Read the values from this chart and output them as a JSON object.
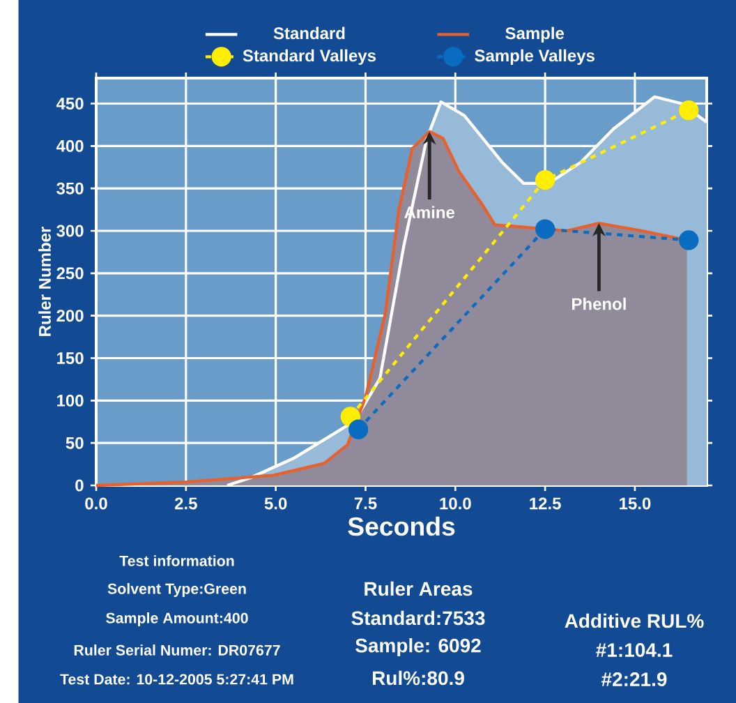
{
  "chart_data": {
    "type": "line",
    "xlabel": "Seconds",
    "ylabel": "Ruler Number",
    "xlim": [
      0,
      17
    ],
    "ylim": [
      0,
      480
    ],
    "xticks": [
      {
        "value": 0,
        "label": "0.0"
      },
      2.5,
      {
        "value": 5,
        "label": "5.0"
      },
      7.5,
      {
        "value": 10,
        "label": "10.0"
      },
      12.5,
      {
        "value": 15,
        "label": "15.0"
      }
    ],
    "yticks": [
      0,
      50,
      100,
      150,
      200,
      250,
      300,
      350,
      400,
      450
    ],
    "grid": true,
    "legend": "top",
    "series": [
      {
        "name": "Standard",
        "type": "area",
        "color": "#ffffff",
        "x": [
          3.65,
          4.3,
          5.5,
          7.2,
          7.9,
          8.56,
          9.2,
          9.6,
          10.25,
          11.3,
          11.9,
          12.6,
          13.5,
          14.4,
          15.55,
          16.3,
          17.0
        ],
        "values": [
          0,
          9,
          32,
          76,
          126,
          281,
          408,
          452,
          436,
          381,
          356,
          356,
          381,
          420,
          458,
          450,
          428
        ]
      },
      {
        "name": "Sample",
        "type": "area",
        "color": "#e8602c",
        "x": [
          0,
          2.5,
          4.95,
          6.35,
          7.0,
          7.5,
          8.05,
          8.43,
          8.8,
          9.28,
          9.66,
          10.1,
          10.75,
          11.1,
          12.6,
          13.1,
          14.0,
          15.2,
          16.45
        ],
        "values": [
          0,
          4,
          12,
          26,
          48,
          104,
          203,
          325,
          397,
          417,
          409,
          370,
          331,
          307,
          302,
          300,
          309,
          300,
          289
        ]
      },
      {
        "name": "Standard Valleys",
        "type": "line",
        "marker": "circle",
        "line_style": "dashed",
        "color": "#ffee00",
        "x": [
          7.08,
          12.5,
          16.5
        ],
        "values": [
          81,
          360,
          442
        ]
      },
      {
        "name": "Sample Valleys",
        "type": "line",
        "marker": "circle",
        "line_style": "dashed",
        "color": "#0a6cc0",
        "x": [
          7.3,
          12.5,
          16.5
        ],
        "values": [
          66,
          302,
          289
        ]
      }
    ],
    "annotations": [
      {
        "text": "Amine",
        "x": 9.28,
        "y": 417
      },
      {
        "text": "Phenol",
        "x": 14.0,
        "y": 309
      },
      "Test information",
      "Solvent Type:Green",
      "Sample Amount:400",
      "Ruler Serial Numer: DR07677",
      "Test Date: 10-12-2005 5:27:41 PM",
      "Ruler Areas",
      "Standard:7533",
      "Sample: 6092",
      "Rul%:80.9",
      "Additive RUL%",
      "#1:104.1",
      "#2:21.9"
    ]
  }
}
